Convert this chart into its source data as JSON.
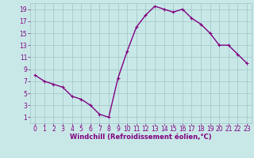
{
  "x": [
    0,
    1,
    2,
    3,
    4,
    5,
    6,
    7,
    8,
    9,
    10,
    11,
    12,
    13,
    14,
    15,
    16,
    17,
    18,
    19,
    20,
    21,
    22,
    23
  ],
  "y": [
    8,
    7,
    6.5,
    6,
    4.5,
    4,
    3,
    1.5,
    1,
    7.5,
    12,
    16,
    18,
    19.5,
    19,
    18.5,
    19,
    17.5,
    16.5,
    15,
    13,
    13,
    11.5,
    10
  ],
  "line_color": "#800080",
  "marker": "+",
  "bg_color": "#c8e8e8",
  "grid_color": "#a0c4c4",
  "xlabel": "Windchill (Refroidissement éolien,°C)",
  "xlim": [
    -0.5,
    23.5
  ],
  "ylim": [
    0,
    20
  ],
  "xticks": [
    0,
    1,
    2,
    3,
    4,
    5,
    6,
    7,
    8,
    9,
    10,
    11,
    12,
    13,
    14,
    15,
    16,
    17,
    18,
    19,
    20,
    21,
    22,
    23
  ],
  "yticks": [
    1,
    3,
    5,
    7,
    9,
    11,
    13,
    15,
    17,
    19
  ],
  "tick_color": "#800080",
  "label_color": "#800080",
  "font_size": 5.5,
  "xlabel_fontsize": 6,
  "linewidth": 1.0,
  "markersize": 3,
  "markeredgewidth": 0.8
}
